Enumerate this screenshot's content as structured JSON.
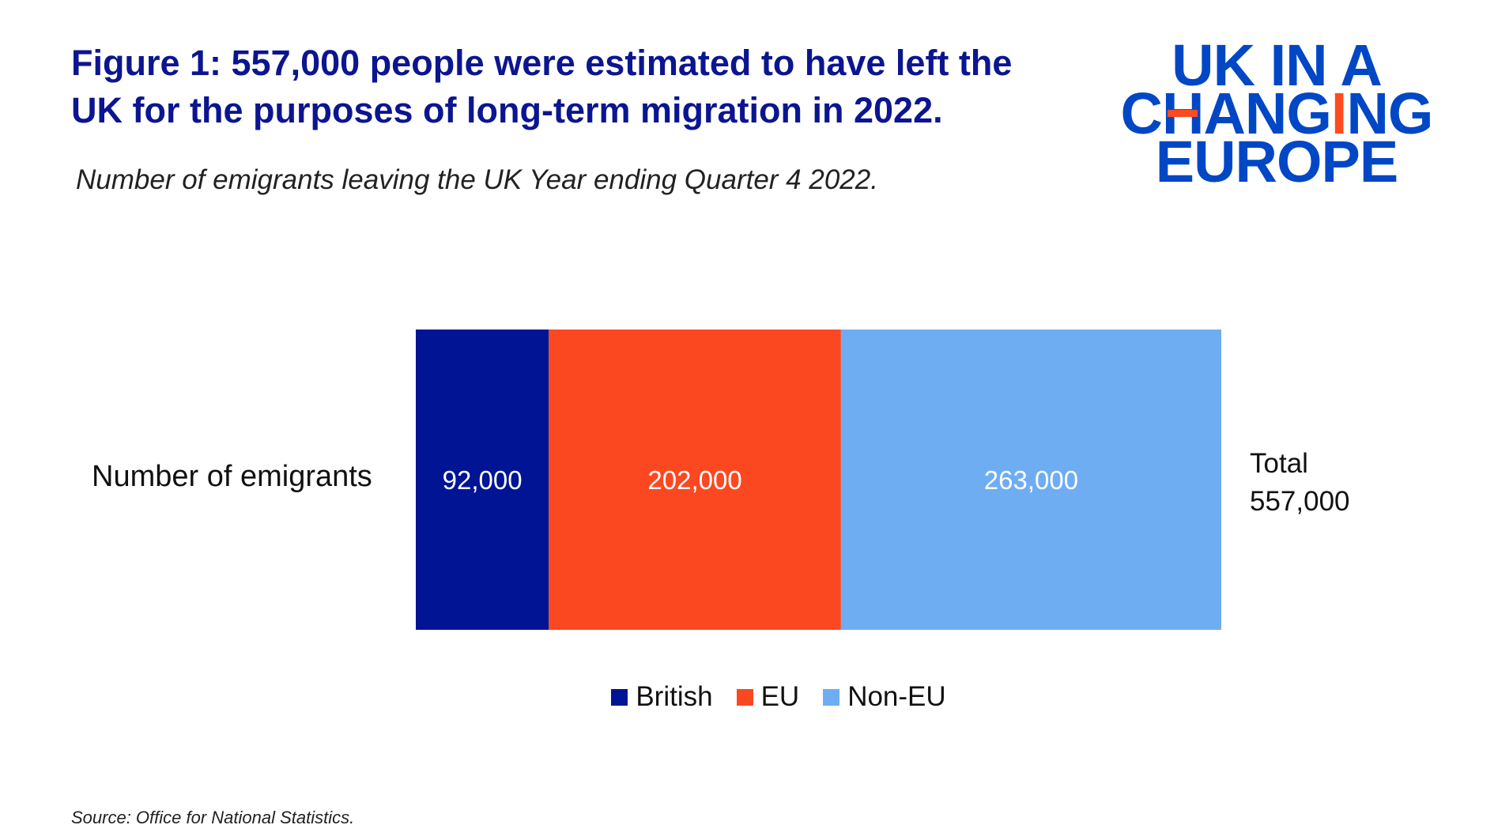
{
  "title": "Figure 1: 557,000 people were estimated to have left the UK for the purposes of long-term migration in 2022.",
  "subtitle": "Number of emigrants leaving the UK Year ending Quarter 4 2022.",
  "logo": {
    "lines": [
      "UK IN A",
      "CHANGING",
      "EUROPE"
    ],
    "color": "#0047c6",
    "accent": "#ff4b1f"
  },
  "source": "Source: Office for National Statistics.",
  "chart_data": {
    "type": "bar",
    "orientation": "horizontal-stacked",
    "categories": [
      "Number of emigrants"
    ],
    "series": [
      {
        "name": "British",
        "values": [
          92000
        ],
        "label": "92,000",
        "color": "#001494"
      },
      {
        "name": "EU",
        "values": [
          202000
        ],
        "label": "202,000",
        "color": "#fc4820"
      },
      {
        "name": "Non-EU",
        "values": [
          263000
        ],
        "label": "263,000",
        "color": "#6eadf2"
      }
    ],
    "total": {
      "label": "Total",
      "value": "557,000"
    },
    "legend_position": "bottom",
    "grid": false
  }
}
